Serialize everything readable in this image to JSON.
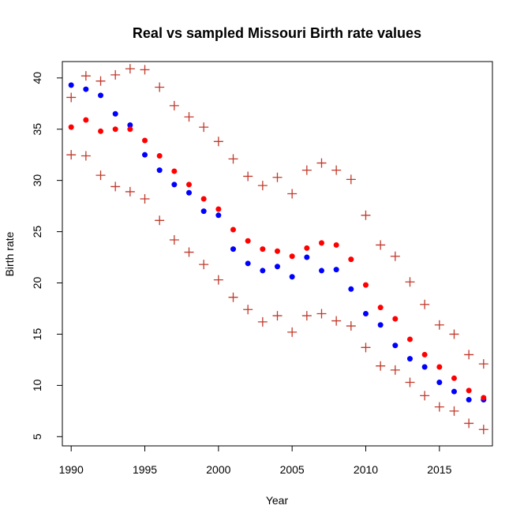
{
  "chart_data": {
    "type": "scatter",
    "title": "Real vs sampled Missouri Birth rate values",
    "xlabel": "Year",
    "ylabel": "Birth rate",
    "xlim": [
      1989.4,
      2018.6
    ],
    "ylim": [
      4.1,
      41.6
    ],
    "xticks": [
      1990,
      1995,
      2000,
      2005,
      2010,
      2015
    ],
    "yticks": [
      5,
      10,
      15,
      20,
      25,
      30,
      35,
      40
    ],
    "grid": false,
    "legend": "none",
    "x": [
      1990,
      1991,
      1992,
      1993,
      1994,
      1995,
      1996,
      1997,
      1998,
      1999,
      2000,
      2001,
      2002,
      2003,
      2004,
      2005,
      2006,
      2007,
      2008,
      2009,
      2010,
      2011,
      2012,
      2013,
      2014,
      2015,
      2016,
      2017,
      2018
    ],
    "series": [
      {
        "marker": "circle",
        "color": "#0000ff",
        "values": [
          39.3,
          38.9,
          38.3,
          36.5,
          35.4,
          32.5,
          31.0,
          29.6,
          28.8,
          27.0,
          26.6,
          23.3,
          21.9,
          21.2,
          21.6,
          20.6,
          22.5,
          21.2,
          21.3,
          19.4,
          17.0,
          15.9,
          13.9,
          12.6,
          11.8,
          10.3,
          9.4,
          8.6,
          8.6
        ]
      },
      {
        "marker": "circle",
        "color": "#ff0000",
        "values": [
          35.2,
          35.9,
          34.8,
          35.0,
          35.0,
          33.9,
          32.4,
          30.9,
          29.6,
          28.2,
          27.2,
          25.2,
          24.1,
          23.3,
          23.1,
          22.6,
          23.4,
          23.9,
          23.7,
          22.3,
          19.8,
          17.6,
          16.5,
          14.5,
          13.0,
          11.8,
          10.7,
          9.5,
          8.8
        ]
      },
      {
        "marker": "plus",
        "color": "#c0392b",
        "values": [
          38.1,
          40.2,
          39.7,
          40.3,
          40.9,
          40.8,
          39.1,
          37.3,
          36.2,
          35.2,
          33.8,
          32.1,
          30.4,
          29.5,
          30.3,
          28.7,
          31.0,
          31.7,
          31.0,
          30.1,
          26.6,
          23.7,
          22.6,
          20.1,
          17.9,
          15.9,
          15.0,
          13.0,
          12.1
        ]
      },
      {
        "marker": "plus",
        "color": "#c0392b",
        "values": [
          32.5,
          32.4,
          30.5,
          29.4,
          28.9,
          28.2,
          26.1,
          24.2,
          23.0,
          21.8,
          20.3,
          18.6,
          17.4,
          16.2,
          16.8,
          15.2,
          16.8,
          17.0,
          16.3,
          15.8,
          13.7,
          11.9,
          11.5,
          10.3,
          9.0,
          7.9,
          7.5,
          6.3,
          5.7
        ]
      }
    ]
  }
}
